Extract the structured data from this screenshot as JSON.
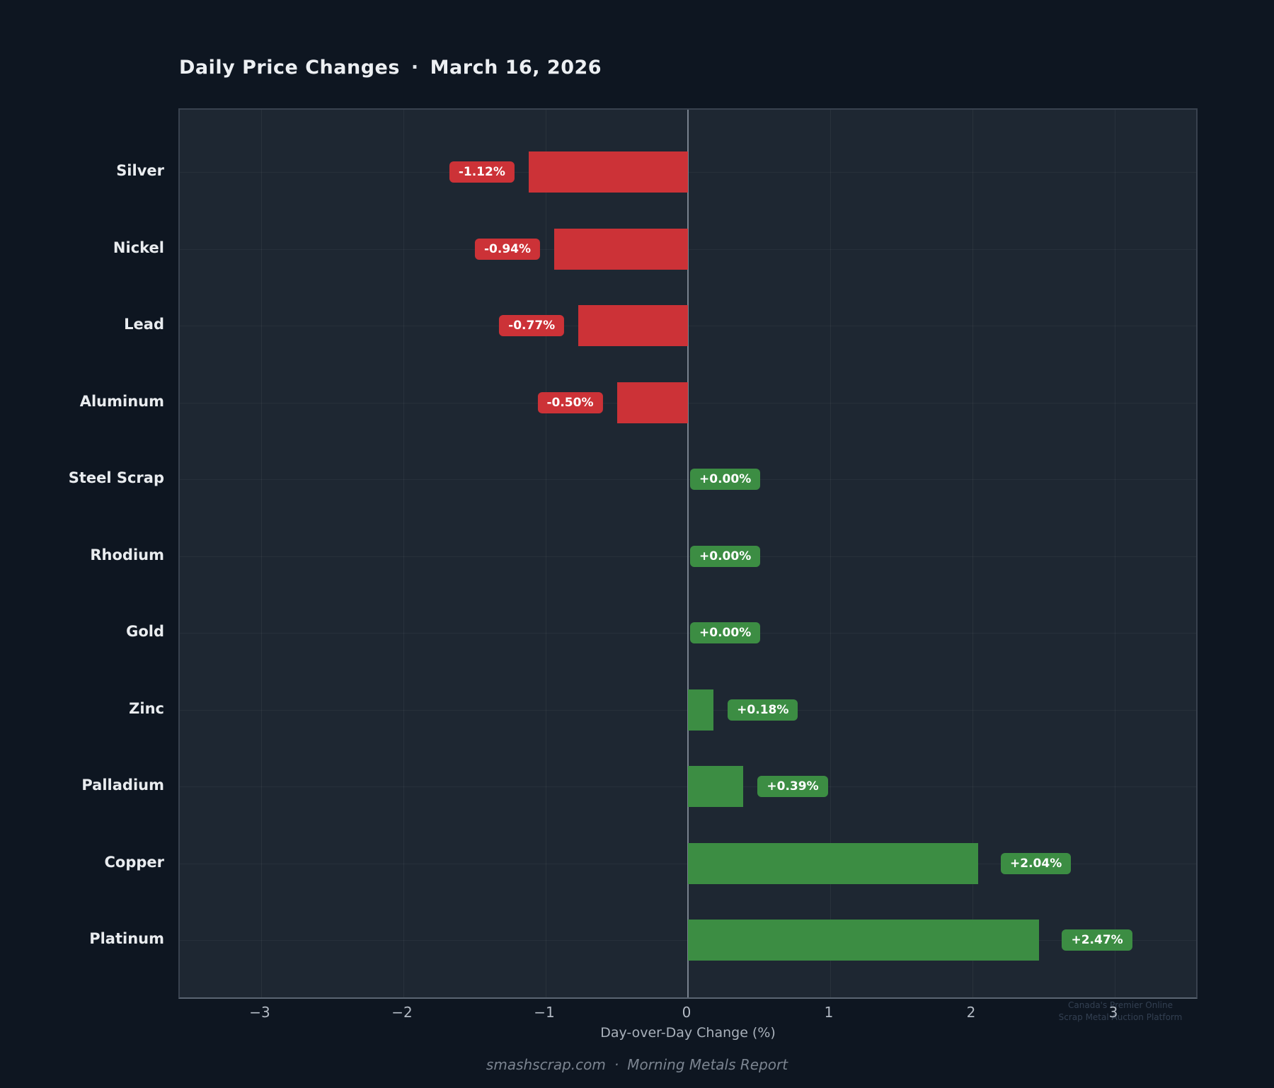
{
  "title": {
    "text": "Daily Price Changes",
    "separator": "·",
    "date": "March 16, 2026"
  },
  "chart_data": {
    "type": "bar",
    "orientation": "horizontal",
    "title": "Daily Price Changes · March 16, 2026",
    "categories": [
      "Silver",
      "Nickel",
      "Lead",
      "Aluminum",
      "Steel Scrap",
      "Rhodium",
      "Gold",
      "Zinc",
      "Palladium",
      "Copper",
      "Platinum"
    ],
    "values": [
      -1.12,
      -0.94,
      -0.77,
      -0.5,
      0.0,
      0.0,
      0.0,
      0.18,
      0.39,
      2.04,
      2.47
    ],
    "bar_labels": [
      "-1.12%",
      "-0.94%",
      "-0.77%",
      "-0.50%",
      "+0.00%",
      "+0.00%",
      "+0.00%",
      "+0.18%",
      "+0.39%",
      "+2.04%",
      "+2.47%"
    ],
    "xlabel": "Day-over-Day Change (%)",
    "xticks": [
      -3,
      -2,
      -1,
      0,
      1,
      2,
      3
    ],
    "xtick_labels": [
      "−3",
      "−2",
      "−1",
      "0",
      "1",
      "2",
      "3"
    ],
    "xlim": [
      -3.57,
      3.59
    ],
    "grid": true,
    "legend": false,
    "colors": {
      "positive": "#3c8d43",
      "negative": "#cc3237",
      "background": "#0e1621",
      "plot_background": "#1e2732"
    }
  },
  "watermark": {
    "line1": "Canada's Premier Online",
    "line2": "Scrap Metal Auction Platform"
  },
  "footer": {
    "site": "smashscrap.com",
    "separator": "·",
    "report": "Morning Metals Report"
  }
}
